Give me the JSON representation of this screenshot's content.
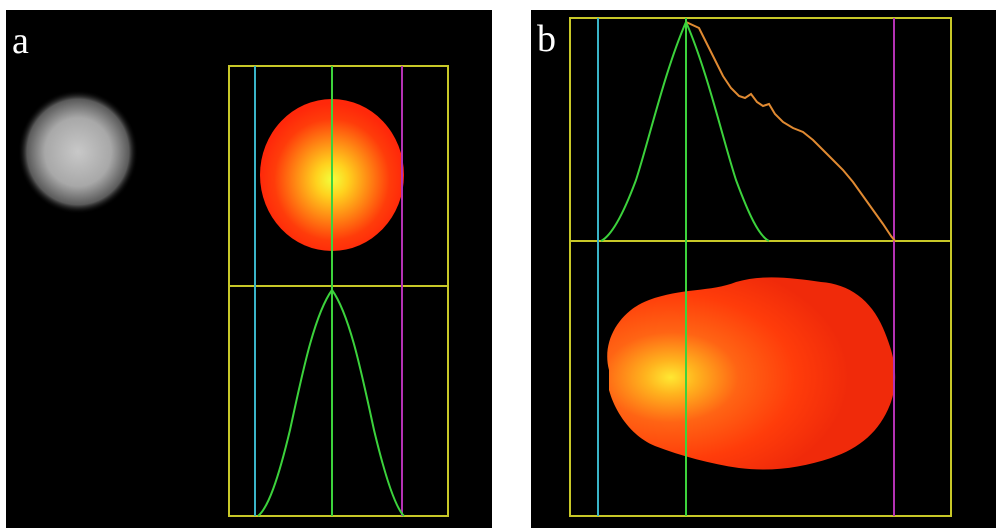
{
  "panels": [
    {
      "label": "a"
    },
    {
      "label": "b"
    }
  ],
  "colors": {
    "background": "#000000",
    "frame": "#c8c828",
    "line_cyan": "#3ab4c8",
    "line_green": "#3cd23c",
    "line_magenta": "#b432b4",
    "profile_orange": "#e08a32",
    "beam_hot": "#ffff3c",
    "beam_mid": "#ff8a14",
    "beam_edge": "#ff2a0a"
  }
}
